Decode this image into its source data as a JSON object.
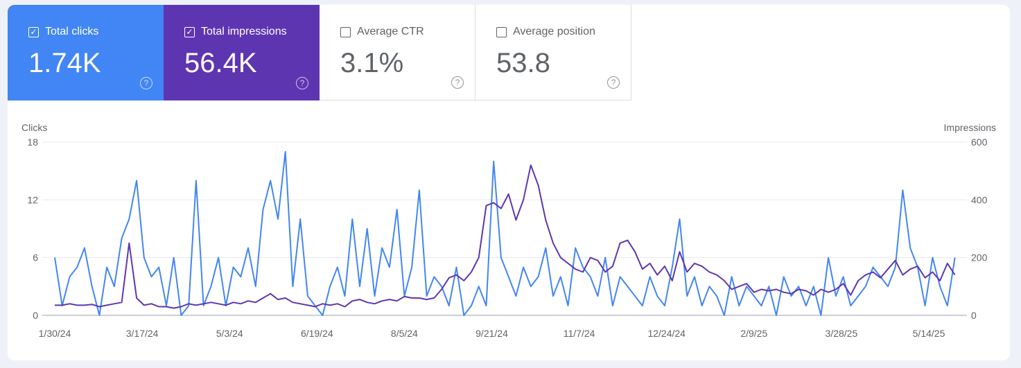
{
  "metrics": [
    {
      "label": "Total clicks",
      "value": "1.74K",
      "checked": true,
      "color": "#4285f4"
    },
    {
      "label": "Total impressions",
      "value": "56.4K",
      "checked": true,
      "color": "#5e35b1"
    },
    {
      "label": "Average CTR",
      "value": "3.1%",
      "checked": false
    },
    {
      "label": "Average position",
      "value": "53.8",
      "checked": false
    }
  ],
  "help_glyph": "?",
  "check_glyph": "✓",
  "chart_data": {
    "type": "line",
    "left_axis_label": "Clicks",
    "right_axis_label": "Impressions",
    "left_ylim": [
      0,
      18
    ],
    "right_ylim": [
      0,
      600
    ],
    "left_ticks": [
      "0",
      "6",
      "12",
      "18"
    ],
    "right_ticks": [
      "0",
      "200",
      "400",
      "600"
    ],
    "x_ticks": [
      "1/30/24",
      "3/17/24",
      "5/3/24",
      "6/19/24",
      "8/5/24",
      "9/21/24",
      "11/7/24",
      "12/24/24",
      "2/9/25",
      "3/28/25",
      "5/14/25"
    ],
    "x_start": "2024-01-30",
    "x_interval_days": 4,
    "grid": true,
    "series": [
      {
        "name": "Clicks",
        "axis": "left",
        "color": "#4285f4",
        "values": [
          6,
          1,
          4,
          5,
          7,
          3,
          0,
          5,
          3,
          8,
          10,
          14,
          6,
          4,
          5,
          1,
          6,
          0,
          1,
          14,
          1,
          3,
          6,
          1,
          5,
          4,
          7,
          3,
          11,
          14,
          10,
          17,
          3,
          10,
          2,
          1,
          0,
          3,
          5,
          2,
          10,
          3,
          9,
          2,
          7,
          5,
          11,
          2,
          5,
          13,
          2,
          4,
          3,
          1,
          5,
          0,
          1,
          3,
          1,
          16,
          6,
          4,
          2,
          5,
          3,
          4,
          7,
          2,
          4,
          1,
          7,
          5,
          4,
          2,
          6,
          1,
          4,
          3,
          2,
          1,
          4,
          2,
          1,
          5,
          10,
          2,
          4,
          1,
          3,
          2,
          0,
          4,
          1,
          3,
          2,
          1,
          3,
          0,
          4,
          2,
          3,
          1,
          3,
          0,
          6,
          2,
          4,
          1,
          2,
          3,
          5,
          4,
          3,
          5,
          13,
          7,
          5,
          1,
          6,
          3,
          1,
          6
        ]
      },
      {
        "name": "Impressions",
        "axis": "right",
        "color": "#5e35b1",
        "values": [
          35,
          35,
          40,
          35,
          35,
          38,
          30,
          35,
          40,
          45,
          250,
          60,
          35,
          40,
          30,
          30,
          25,
          30,
          40,
          35,
          40,
          45,
          40,
          35,
          45,
          40,
          50,
          45,
          60,
          75,
          55,
          60,
          45,
          40,
          35,
          30,
          40,
          35,
          40,
          30,
          50,
          55,
          45,
          40,
          50,
          55,
          50,
          65,
          60,
          60,
          55,
          60,
          90,
          130,
          140,
          120,
          150,
          200,
          380,
          390,
          370,
          420,
          330,
          400,
          520,
          450,
          330,
          250,
          200,
          180,
          160,
          150,
          200,
          190,
          150,
          170,
          250,
          260,
          220,
          160,
          180,
          140,
          170,
          120,
          220,
          150,
          180,
          170,
          150,
          140,
          120,
          90,
          100,
          110,
          80,
          90,
          85,
          90,
          80,
          75,
          90,
          85,
          70,
          90,
          80,
          90,
          110,
          70,
          120,
          140,
          150,
          130,
          160,
          190,
          140,
          160,
          170,
          130,
          150,
          120,
          180,
          140
        ]
      }
    ]
  }
}
